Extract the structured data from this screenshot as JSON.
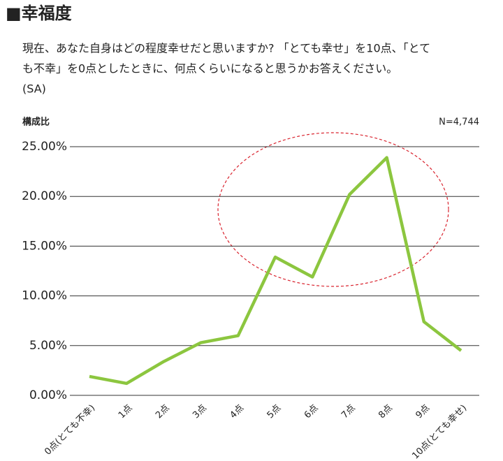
{
  "chart_data": {
    "type": "line",
    "title": "■幸福度",
    "question_lines": [
      "現在、あなた自身はどの程度幸せだと思いますか? 「とても幸せ」を10点、「とて",
      "も不幸」を0点としたときに、何点くらいになると思うかお答えください。"
    ],
    "answer_type": "(SA)",
    "y_label": "構成比",
    "sample_size": "N=4,744",
    "categories": [
      "0点(とても不幸)",
      "1点",
      "2点",
      "3点",
      "4点",
      "5点",
      "6点",
      "7点",
      "8点",
      "9点",
      "10点(とても幸せ)"
    ],
    "values": [
      1.9,
      1.2,
      3.4,
      5.3,
      6.0,
      13.9,
      11.9,
      20.2,
      23.9,
      7.4,
      4.5
    ],
    "color": "#8cc63f",
    "ylim": [
      0,
      25
    ],
    "yticks": [
      {
        "value": 0,
        "label": "0.00%"
      },
      {
        "value": 5,
        "label": "5.00%"
      },
      {
        "value": 10,
        "label": "10.00%"
      },
      {
        "value": 15,
        "label": "15.00%"
      },
      {
        "value": 20,
        "label": "20.00%"
      },
      {
        "value": 25,
        "label": "25.00%"
      }
    ],
    "grid": true
  }
}
